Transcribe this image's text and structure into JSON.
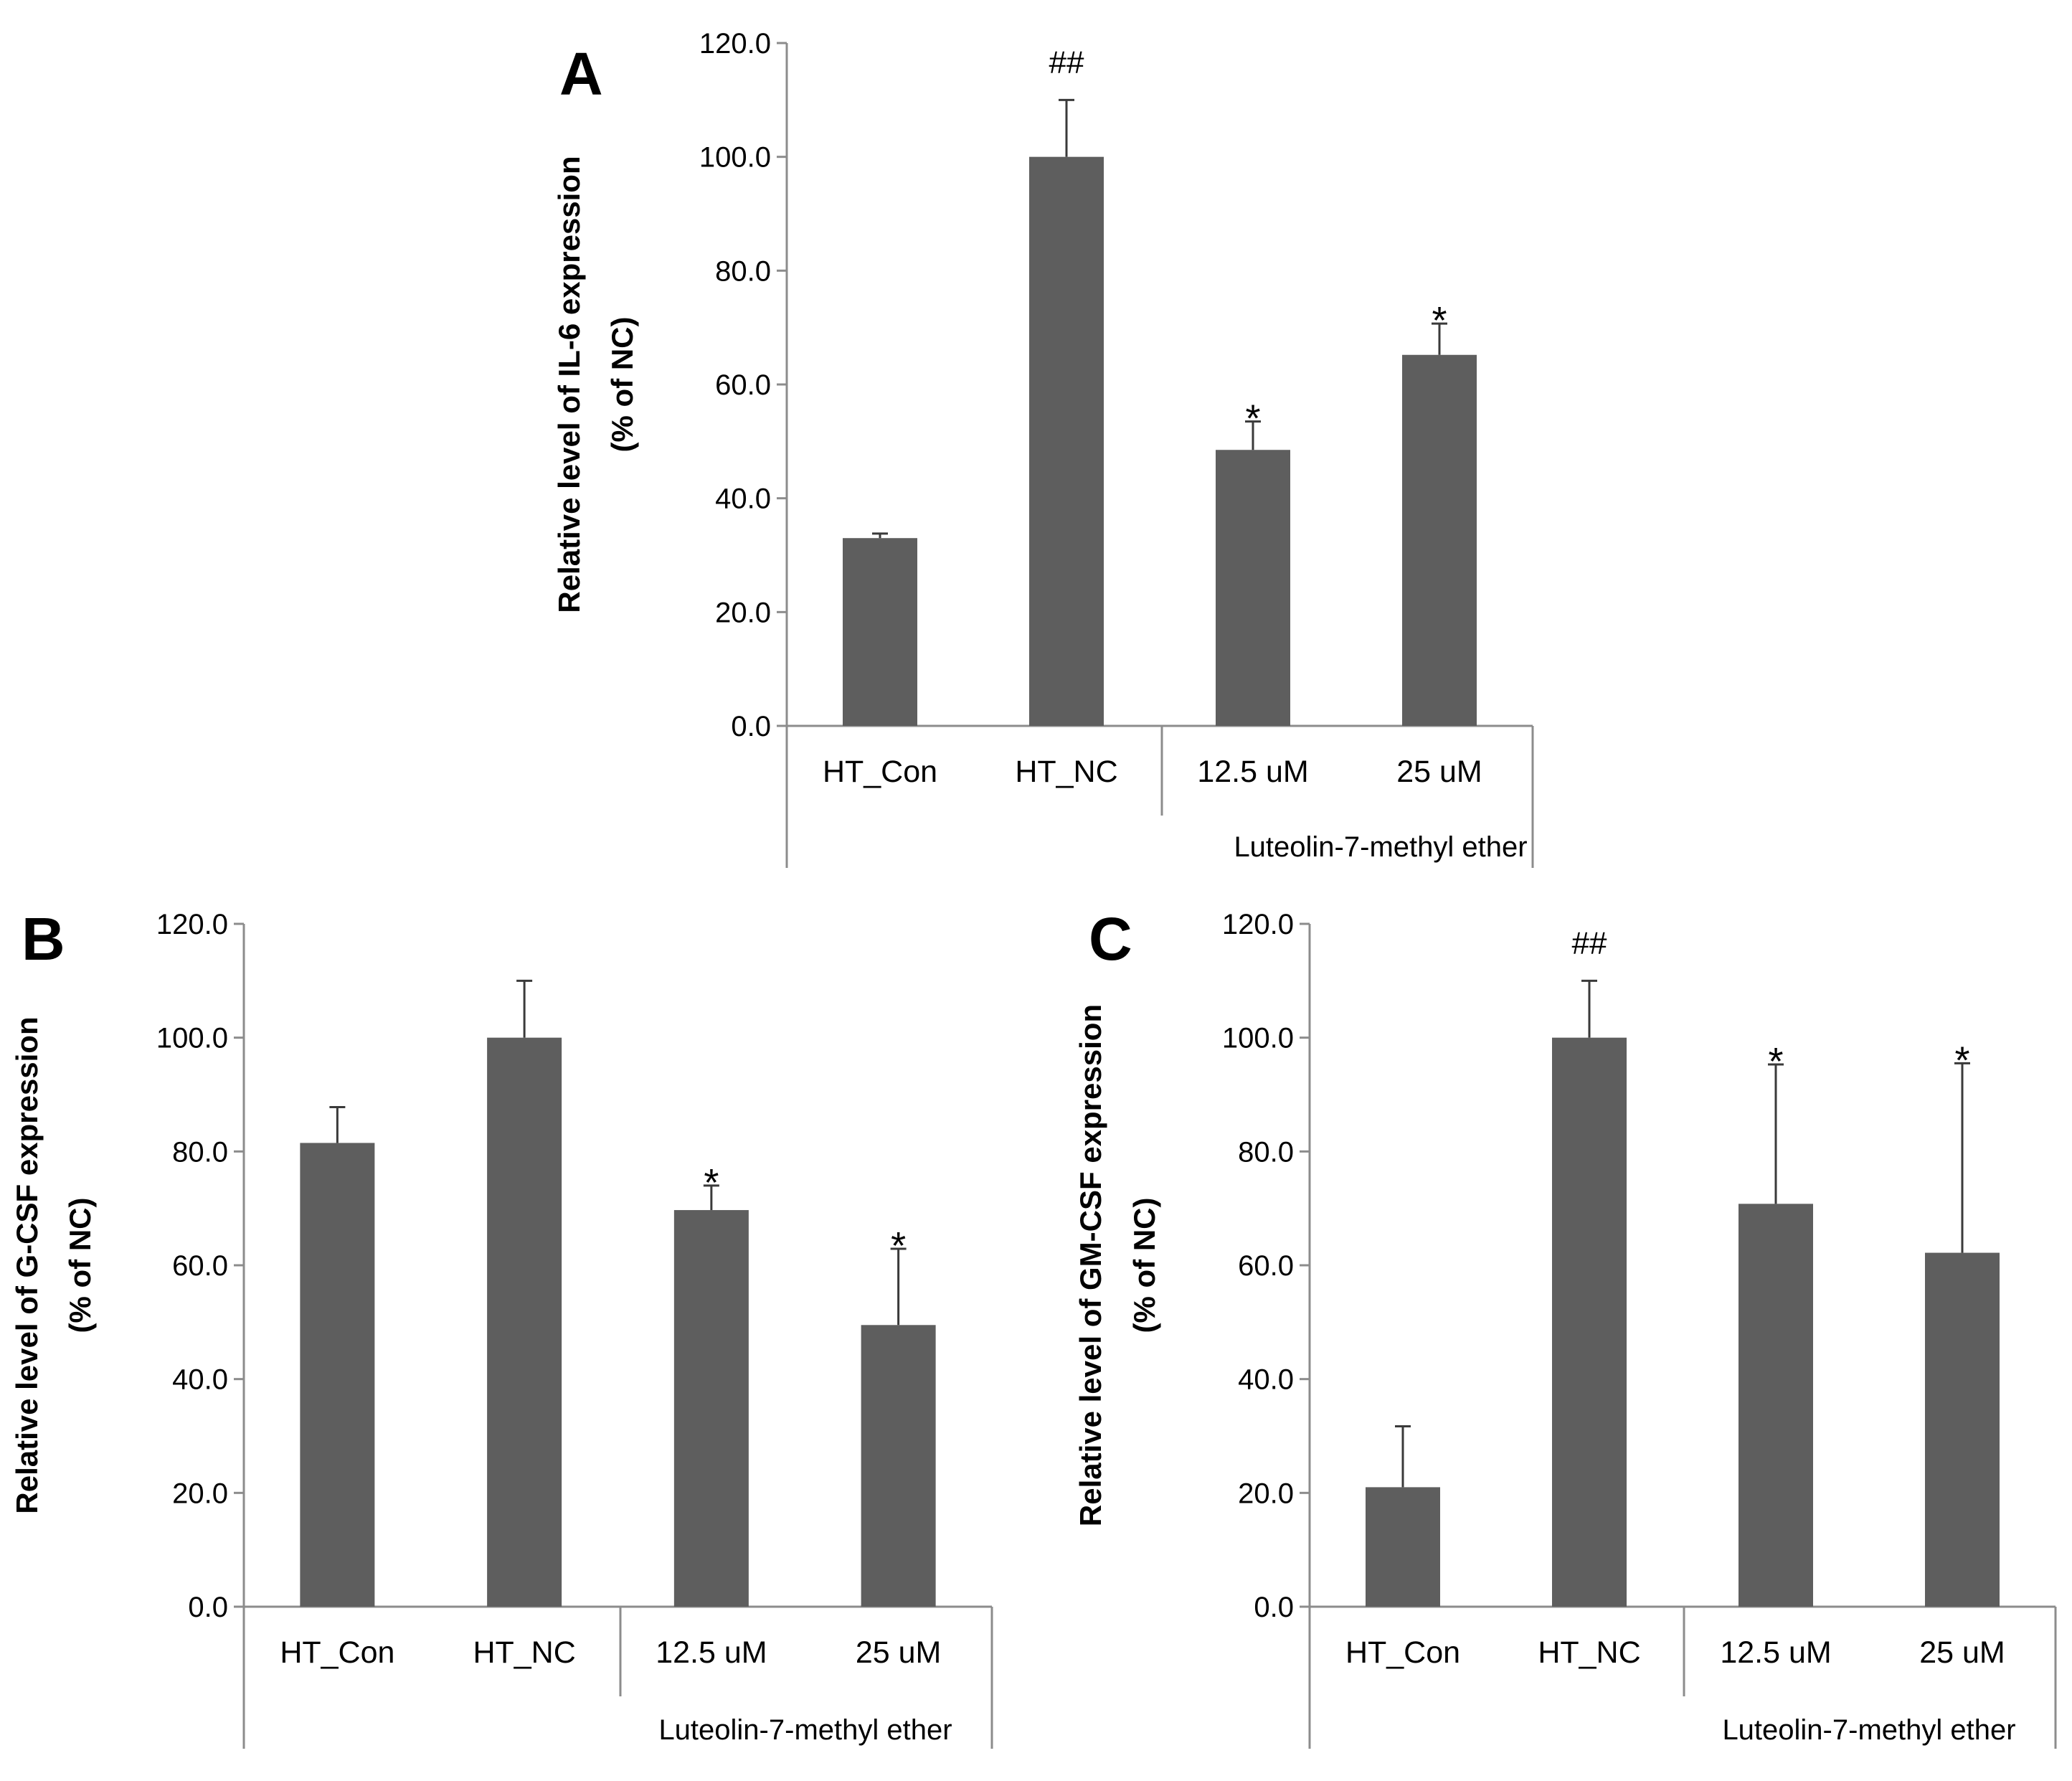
{
  "colors": {
    "bar": "#5e5e5e",
    "axis": "#8c8c8c",
    "error": "#3a3a3a"
  },
  "chart_data": [
    {
      "panel": "A",
      "type": "bar",
      "categories": [
        "HT_Con",
        "HT_NC",
        "12.5 uM",
        "25 uM"
      ],
      "values": [
        33.0,
        100.0,
        48.5,
        65.2
      ],
      "errors": [
        0.8,
        10.0,
        5.0,
        5.5
      ],
      "significance": [
        "",
        "##",
        "*",
        "*"
      ],
      "group_label": "Luteolin-7-methyl ether",
      "ylabel_line1": "Relative level of IL-6 expression",
      "ylabel_line2": "(% of NC)",
      "ylim": [
        0,
        120
      ],
      "yticks": [
        "0.0",
        "20.0",
        "40.0",
        "60.0",
        "80.0",
        "100.0",
        "120.0"
      ]
    },
    {
      "panel": "B",
      "type": "bar",
      "categories": [
        "HT_Con",
        "HT_NC",
        "12.5 uM",
        "25 uM"
      ],
      "values": [
        81.5,
        100.0,
        69.7,
        49.5
      ],
      "errors": [
        6.3,
        10.0,
        4.3,
        13.4
      ],
      "significance": [
        "",
        "",
        "*",
        "*"
      ],
      "group_label": "Luteolin-7-methyl ether",
      "ylabel_line1": "Relative level of G-CSF expression",
      "ylabel_line2": "(% of NC)",
      "ylim": [
        0,
        120
      ],
      "yticks": [
        "0.0",
        "20.0",
        "40.0",
        "60.0",
        "80.0",
        "100.0",
        "120.0"
      ]
    },
    {
      "panel": "C",
      "type": "bar",
      "categories": [
        "HT_Con",
        "HT_NC",
        "12.5 uM",
        "25 uM"
      ],
      "values": [
        21.0,
        100.0,
        70.8,
        62.2
      ],
      "errors": [
        10.7,
        10.0,
        24.5,
        33.3
      ],
      "significance": [
        "",
        "##",
        "*",
        "*"
      ],
      "group_label": "Luteolin-7-methyl ether",
      "ylabel_line1": "Relative level of GM-CSF expression",
      "ylabel_line2": "(% of NC)",
      "ylim": [
        0,
        120
      ],
      "yticks": [
        "0.0",
        "20.0",
        "40.0",
        "60.0",
        "80.0",
        "100.0",
        "120.0"
      ]
    }
  ]
}
